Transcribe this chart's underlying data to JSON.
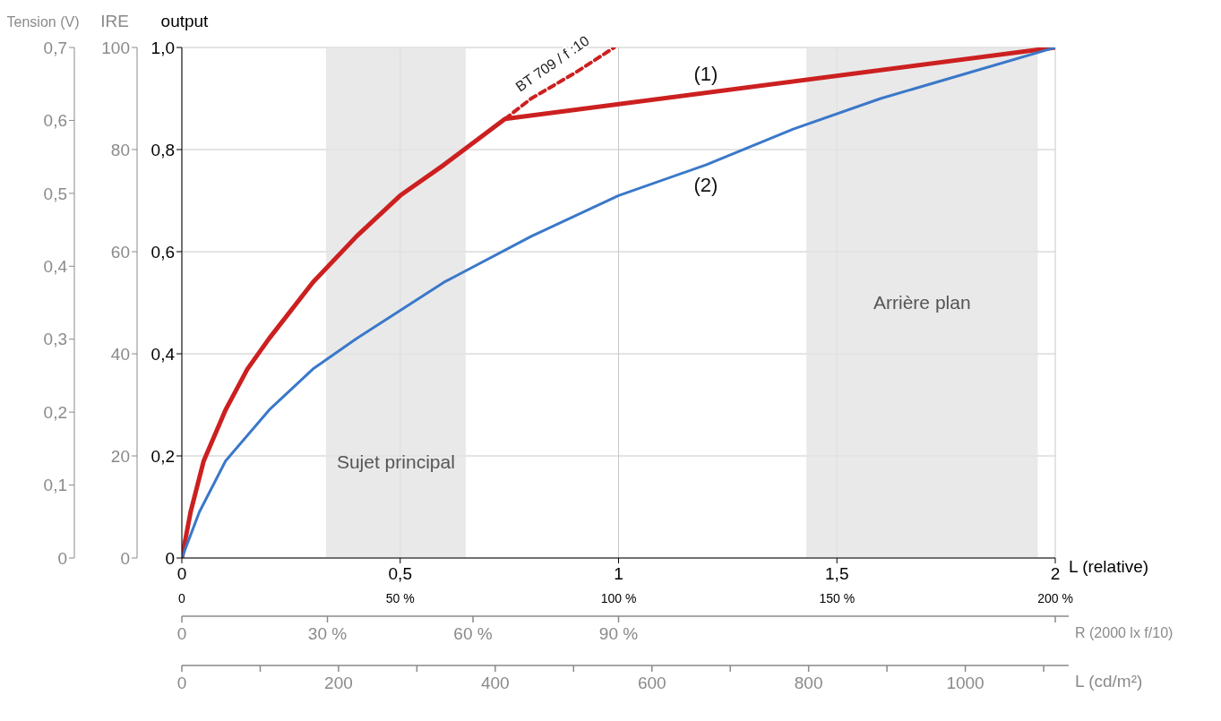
{
  "chart_data": {
    "type": "line",
    "series": [
      {
        "name": "(1)",
        "color": "#cc2020",
        "x": [
          0,
          0.01,
          0.02,
          0.05,
          0.1,
          0.15,
          0.2,
          0.3,
          0.4,
          0.5,
          0.6,
          0.74,
          2
        ],
        "values": [
          0,
          0.045,
          0.09,
          0.19,
          0.29,
          0.37,
          0.43,
          0.54,
          0.63,
          0.71,
          0.77,
          0.86,
          1.0
        ]
      },
      {
        "color": "#cc2020",
        "line_style": "dashed",
        "x": [
          0.74,
          0.8,
          0.9,
          0.99
        ],
        "values": [
          0.86,
          0.9,
          0.95,
          1.0
        ]
      },
      {
        "name": "(2)",
        "color": "#3a78c9",
        "x": [
          0,
          0.02,
          0.04,
          0.1,
          0.2,
          0.3,
          0.4,
          0.6,
          0.8,
          1,
          1.2,
          1.4,
          1.6,
          1.8,
          2
        ],
        "values": [
          0,
          0.045,
          0.09,
          0.19,
          0.29,
          0.37,
          0.43,
          0.54,
          0.63,
          0.71,
          0.77,
          0.84,
          0.9,
          0.95,
          1.0
        ]
      }
    ],
    "xlabel": "L (relative)",
    "ylabel": "output",
    "y2label": "IRE",
    "y3label": "Tension (V)",
    "x2label": "R (2000 lx f/10)",
    "xlim": [
      0,
      2
    ],
    "xticks": [
      0,
      {
        "value": 0.5,
        "label": "0,5"
      },
      1,
      {
        "value": 1.5,
        "label": "1,5"
      },
      2
    ],
    "x2lim": [
      0,
      180
    ],
    "x2ticks": [
      0,
      {
        "value": 30,
        "label": "30 %"
      },
      {
        "value": 60,
        "label": "60 %"
      },
      {
        "value": 90,
        "label": "90 %"
      },
      {
        "value": 180,
        "label": null
      }
    ],
    "ylim": [
      0,
      1
    ],
    "yticks": [
      0,
      {
        "value": 0.2,
        "label": "0,2"
      },
      {
        "value": 0.4,
        "label": "0,4"
      },
      {
        "value": 0.6,
        "label": "0,6"
      },
      {
        "value": 0.8,
        "label": "0,8"
      },
      {
        "value": 1,
        "label": "1,0"
      }
    ],
    "y2lim": [
      0,
      100
    ],
    "y2ticks": [
      0,
      20,
      40,
      60,
      80,
      100
    ],
    "y3lim": [
      0,
      0.7
    ],
    "y3ticks": [
      0,
      {
        "value": 0.1,
        "label": "0,1"
      },
      {
        "value": 0.2,
        "label": "0,2"
      },
      {
        "value": 0.3,
        "label": "0,3"
      },
      {
        "value": 0.4,
        "label": "0,4"
      },
      {
        "value": 0.5,
        "label": "0,5"
      },
      {
        "value": 0.6,
        "label": "0,6"
      },
      {
        "value": 0.7,
        "label": "0,7"
      }
    ],
    "bands": [
      {
        "axis": "x",
        "from": 0.33,
        "to": 0.65,
        "label": "Sujet principal",
        "color": "#e3e3e3"
      },
      {
        "axis": "x",
        "from": 1.43,
        "to": 1.96,
        "label": "Arrière plan",
        "color": "#e3e3e3"
      }
    ],
    "annotations": [
      "BT 709 / f :10",
      "0",
      "50 %",
      "100 %",
      "150 %",
      "200 %",
      "L (cd/m²)",
      "0",
      "200",
      "400",
      "600",
      "800",
      "1000"
    ],
    "grid": true,
    "legend": false,
    "marker": "none"
  }
}
